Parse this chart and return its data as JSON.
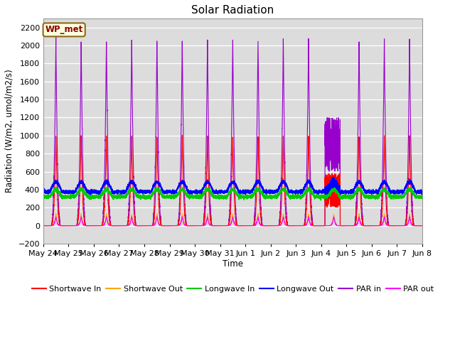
{
  "title": "Solar Radiation",
  "ylabel": "Radiation (W/m2, umol/m2/s)",
  "xlabel": "Time",
  "ylim": [
    -200,
    2300
  ],
  "yticks": [
    -200,
    0,
    200,
    400,
    600,
    800,
    1000,
    1200,
    1400,
    1600,
    1800,
    2000,
    2200
  ],
  "xtick_labels": [
    "May 24",
    "May 25",
    "May 26",
    "May 27",
    "May 28",
    "May 29",
    "May 30",
    "May 31",
    "Jun 1",
    "Jun 2",
    "Jun 3",
    "Jun 4",
    "Jun 5",
    "Jun 6",
    "Jun 7",
    "Jun 8"
  ],
  "annotation_text": "WP_met",
  "annotation_color": "#8B0000",
  "annotation_bg": "#FFFFE0",
  "annotation_border": "#8B6914",
  "bg_color": "#DCDCDC",
  "grid_color": "#FFFFFF",
  "series": {
    "shortwave_in": {
      "color": "#FF0000",
      "label": "Shortwave In"
    },
    "shortwave_out": {
      "color": "#FFA500",
      "label": "Shortwave Out"
    },
    "longwave_in": {
      "color": "#00CC00",
      "label": "Longwave In"
    },
    "longwave_out": {
      "color": "#0000FF",
      "label": "Longwave Out"
    },
    "par_in": {
      "color": "#9900CC",
      "label": "PAR in"
    },
    "par_out": {
      "color": "#FF00FF",
      "label": "PAR out"
    }
  },
  "num_days": 15,
  "ppd": 480,
  "sw_in_peak": 1000,
  "sw_out_peak": 130,
  "lw_in_base": 320,
  "lw_in_day_bump": 80,
  "lw_out_base": 375,
  "lw_out_day_bump": 110,
  "par_in_peak": 2080,
  "par_out_peak": 100,
  "figsize": [
    6.4,
    4.8
  ],
  "dpi": 100
}
